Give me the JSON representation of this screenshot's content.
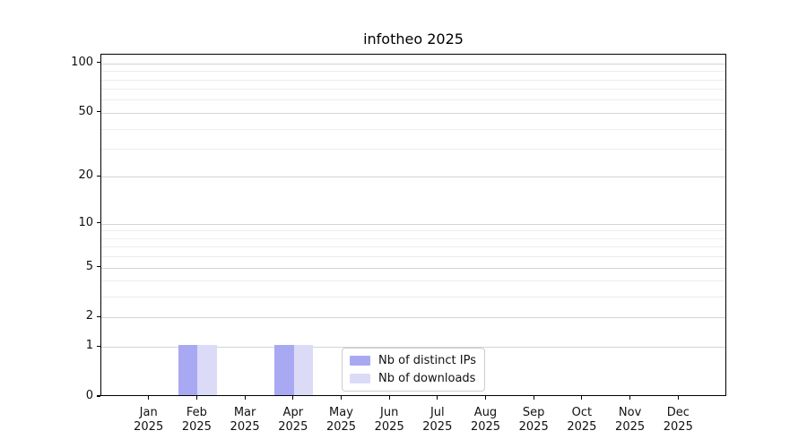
{
  "chart_data": {
    "type": "bar",
    "title": "infotheo 2025",
    "year_label": "2025",
    "categories": [
      "Jan",
      "Feb",
      "Mar",
      "Apr",
      "May",
      "Jun",
      "Jul",
      "Aug",
      "Sep",
      "Oct",
      "Nov",
      "Dec"
    ],
    "series": [
      {
        "name": "Nb of distinct IPs",
        "color": "#a9a9f3",
        "values": [
          0,
          1,
          0,
          1,
          0,
          0,
          0,
          0,
          0,
          0,
          0,
          0
        ]
      },
      {
        "name": "Nb of downloads",
        "color": "#dbdbf8",
        "values": [
          0,
          1,
          0,
          1,
          0,
          0,
          0,
          0,
          0,
          0,
          0,
          0
        ]
      }
    ],
    "yscale": "log1p",
    "ylim": [
      0,
      113
    ],
    "yticks": [
      0,
      1,
      2,
      5,
      10,
      20,
      50,
      100
    ],
    "ytick_labels": [
      "0",
      "1",
      "2",
      "5",
      "10",
      "20",
      "50",
      "100"
    ],
    "minor_gridlines": [
      3,
      4,
      6,
      7,
      8,
      9,
      30,
      40,
      60,
      70,
      80,
      90
    ],
    "grid": true,
    "legend": {
      "position": "lower center"
    }
  },
  "colors": {
    "major_grid": "#d4d4d4",
    "minor_grid": "#ededed",
    "axis": "#000000",
    "legend_border": "#cccccc",
    "text": "#111111"
  }
}
